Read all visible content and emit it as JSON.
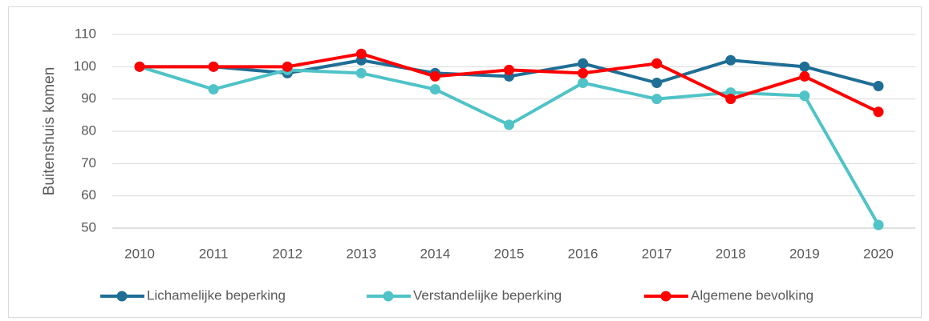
{
  "chart_data": {
    "type": "line",
    "y_label": "Buitenshuis komen",
    "categories": [
      "2010",
      "2011",
      "2012",
      "2013",
      "2014",
      "2015",
      "2016",
      "2017",
      "2018",
      "2019",
      "2020"
    ],
    "series": [
      {
        "name": "Lichamelijke beperking",
        "color": "#1f6e96",
        "values": [
          100,
          100,
          98,
          102,
          98,
          97,
          101,
          95,
          102,
          100,
          94
        ]
      },
      {
        "name": "Verstandelijke beperking",
        "color": "#4fc3c7",
        "values": [
          100,
          93,
          99,
          98,
          93,
          82,
          95,
          90,
          92,
          91,
          51
        ]
      },
      {
        "name": "Algemene bevolking",
        "color": "#ff0000",
        "values": [
          100,
          100,
          100,
          104,
          97,
          99,
          98,
          101,
          90,
          97,
          86
        ]
      }
    ],
    "ylim": [
      50,
      110
    ],
    "yticks": [
      50,
      60,
      70,
      80,
      90,
      100,
      110
    ],
    "grid": true,
    "legend": "bottom"
  }
}
